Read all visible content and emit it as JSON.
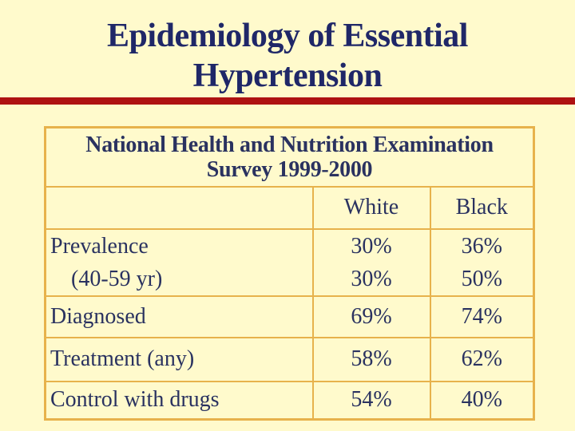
{
  "slide": {
    "title_lines": [
      "Epidemiology of Essential",
      "Hypertension"
    ]
  },
  "table": {
    "caption_lines": [
      "National Health and Nutrition Examination",
      "Survey 1999-2000"
    ],
    "columns": [
      "",
      "White",
      "Black"
    ],
    "rows": [
      {
        "label": [
          "Prevalence",
          "(40-59 yr)"
        ],
        "white": [
          "30%",
          "30%"
        ],
        "black": [
          "36%",
          "50%"
        ]
      },
      {
        "label": [
          "Diagnosed"
        ],
        "white": [
          "69%"
        ],
        "black": [
          "74%"
        ]
      },
      {
        "label": [
          "Treatment (any)"
        ],
        "white": [
          "58%"
        ],
        "black": [
          "62%"
        ]
      },
      {
        "label": [
          "Control with drugs"
        ],
        "white": [
          "54%"
        ],
        "black": [
          "40%"
        ]
      }
    ]
  },
  "colors": {
    "background": "#FFFACC",
    "table_border": "#E7B24C",
    "underline_red": "#AE1111",
    "title_text": "#1F2768",
    "body_text": "#2A3260"
  }
}
